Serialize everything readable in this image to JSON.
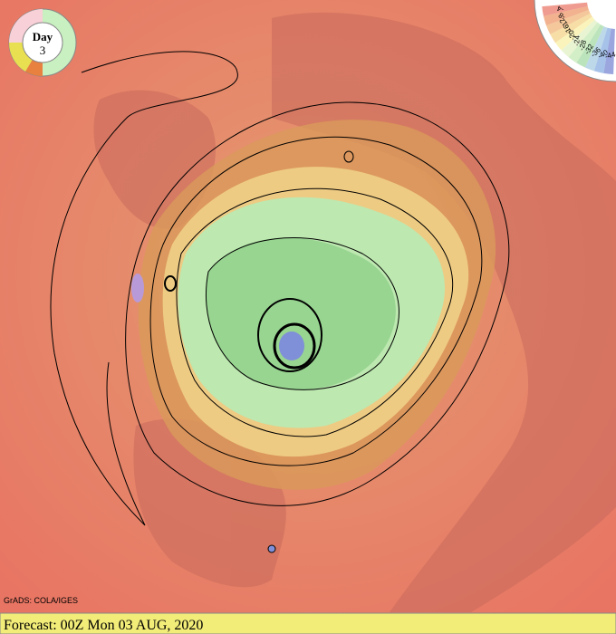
{
  "day_badge": {
    "label": "Day",
    "number": "3"
  },
  "legend": {
    "labels": [
      "-4",
      "-8",
      "-12",
      "-16",
      "-20",
      "-24",
      "-28",
      "-32",
      "-36",
      "-40",
      "-44"
    ]
  },
  "credit": "GrADS: COLA/IGES",
  "footer": "Forecast: 00Z Mon 03 AUG, 2020"
}
